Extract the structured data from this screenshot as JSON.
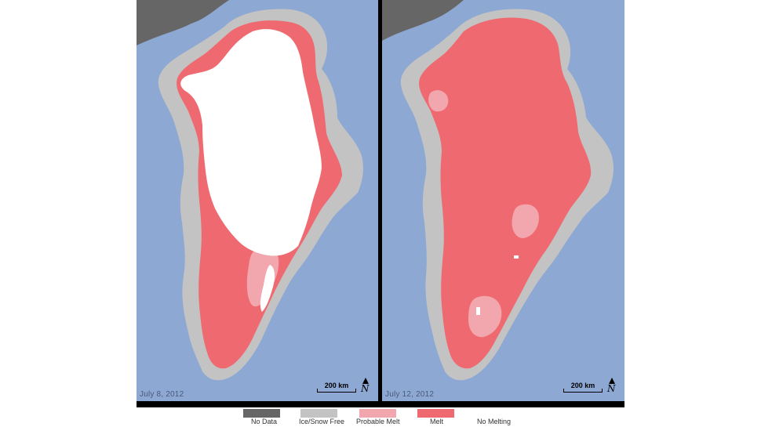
{
  "panels": [
    {
      "date": "July 8, 2012",
      "scale": "200 km",
      "north": "N"
    },
    {
      "date": "July 12, 2012",
      "scale": "200 km",
      "north": "N"
    }
  ],
  "legend": [
    {
      "label": "No Data",
      "color": "#666666"
    },
    {
      "label": "Ice/Snow Free",
      "color": "#c3c3c3"
    },
    {
      "label": "Probable Melt",
      "color": "#f2a6ad"
    },
    {
      "label": "Melt",
      "color": "#ef6a70"
    },
    {
      "label": "No Melting",
      "color": "#ffffff"
    }
  ],
  "colors": {
    "ocean": "#8da8d3",
    "land_no_data": "#666666",
    "ice_free": "#c3c3c3",
    "probable_melt": "#f2a6ad",
    "melt": "#ef6a70",
    "no_melting": "#ffffff"
  }
}
